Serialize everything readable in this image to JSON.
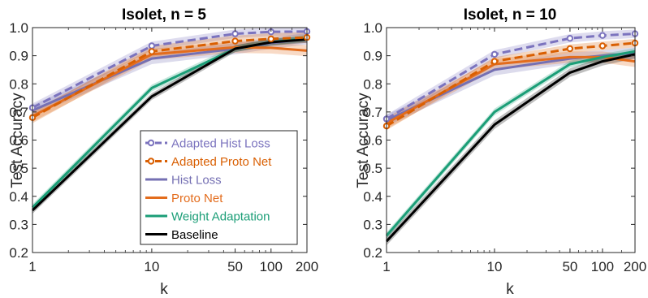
{
  "colors": {
    "adapted_hist": "#7b73be",
    "adapted_proto": "#d95f02",
    "hist": "#7570b3",
    "proto": "#e36c1c",
    "weight": "#1b9e77",
    "baseline": "#000000",
    "axis": "#262626"
  },
  "chart_data": [
    {
      "type": "line",
      "title": "Isolet, n = 5",
      "xlabel": "k",
      "ylabel": "Test Accuracy",
      "xscale": "log",
      "x": [
        1,
        10,
        50,
        100,
        200
      ],
      "xtick_labels": [
        "1",
        "10",
        "50",
        "100",
        "200"
      ],
      "ylim": [
        0.2,
        1.0
      ],
      "yticks": [
        0.2,
        0.3,
        0.4,
        0.5,
        0.6,
        0.7,
        0.8,
        0.9,
        1.0
      ],
      "ytick_labels": [
        "0.2",
        "0.3",
        "0.4",
        "0.5",
        "0.6",
        "0.7",
        "0.8",
        "0.9",
        "1.0"
      ],
      "grid": false,
      "legend": "bottom-right",
      "series": [
        {
          "name": "Adapted Hist Loss",
          "color_key": "adapted_hist",
          "dashed": true,
          "markers": true,
          "values": [
            0.715,
            0.935,
            0.978,
            0.985,
            0.986
          ],
          "band": 0.015
        },
        {
          "name": "Adapted Proto Net",
          "color_key": "adapted_proto",
          "dashed": true,
          "markers": true,
          "values": [
            0.68,
            0.915,
            0.952,
            0.96,
            0.965
          ],
          "band": 0.02
        },
        {
          "name": "Hist Loss",
          "color_key": "hist",
          "dashed": false,
          "markers": false,
          "values": [
            0.705,
            0.89,
            0.925,
            0.945,
            0.96
          ],
          "band": 0.02
        },
        {
          "name": "Proto Net",
          "color_key": "proto",
          "dashed": false,
          "markers": false,
          "values": [
            0.685,
            0.905,
            0.93,
            0.928,
            0.918
          ],
          "band": 0.02
        },
        {
          "name": "Weight Adaptation",
          "color_key": "weight",
          "dashed": false,
          "markers": false,
          "values": [
            0.36,
            0.785,
            0.925,
            0.948,
            0.962
          ],
          "band": 0.012
        },
        {
          "name": "Baseline",
          "color_key": "baseline",
          "dashed": false,
          "markers": false,
          "values": [
            0.35,
            0.755,
            0.925,
            0.948,
            0.958
          ],
          "band": 0.012
        }
      ]
    },
    {
      "type": "line",
      "title": "Isolet, n = 10",
      "xlabel": "k",
      "ylabel": "Test Accuracy",
      "xscale": "log",
      "x": [
        1,
        10,
        50,
        100,
        200
      ],
      "xtick_labels": [
        "1",
        "10",
        "50",
        "100",
        "200"
      ],
      "ylim": [
        0.2,
        1.0
      ],
      "yticks": [
        0.2,
        0.3,
        0.4,
        0.5,
        0.6,
        0.7,
        0.8,
        0.9,
        1.0
      ],
      "ytick_labels": [
        "0.2",
        "0.3",
        "0.4",
        "0.5",
        "0.6",
        "0.7",
        "0.8",
        "0.9",
        "1.0"
      ],
      "grid": false,
      "legend": "none",
      "series": [
        {
          "name": "Adapted Hist Loss",
          "color_key": "adapted_hist",
          "dashed": true,
          "markers": true,
          "values": [
            0.675,
            0.905,
            0.962,
            0.972,
            0.978
          ],
          "band": 0.015
        },
        {
          "name": "Adapted Proto Net",
          "color_key": "adapted_proto",
          "dashed": true,
          "markers": true,
          "values": [
            0.65,
            0.88,
            0.925,
            0.935,
            0.945
          ],
          "band": 0.015
        },
        {
          "name": "Hist Loss",
          "color_key": "hist",
          "dashed": false,
          "markers": false,
          "values": [
            0.67,
            0.85,
            0.89,
            0.9,
            0.91
          ],
          "band": 0.02
        },
        {
          "name": "Proto Net",
          "color_key": "proto",
          "dashed": false,
          "markers": false,
          "values": [
            0.66,
            0.87,
            0.895,
            0.895,
            0.88
          ],
          "band": 0.02
        },
        {
          "name": "Weight Adaptation",
          "color_key": "weight",
          "dashed": false,
          "markers": false,
          "values": [
            0.26,
            0.7,
            0.87,
            0.895,
            0.915
          ],
          "band": 0.012
        },
        {
          "name": "Baseline",
          "color_key": "baseline",
          "dashed": false,
          "markers": false,
          "values": [
            0.24,
            0.655,
            0.84,
            0.88,
            0.905
          ],
          "band": 0.015
        }
      ]
    }
  ]
}
